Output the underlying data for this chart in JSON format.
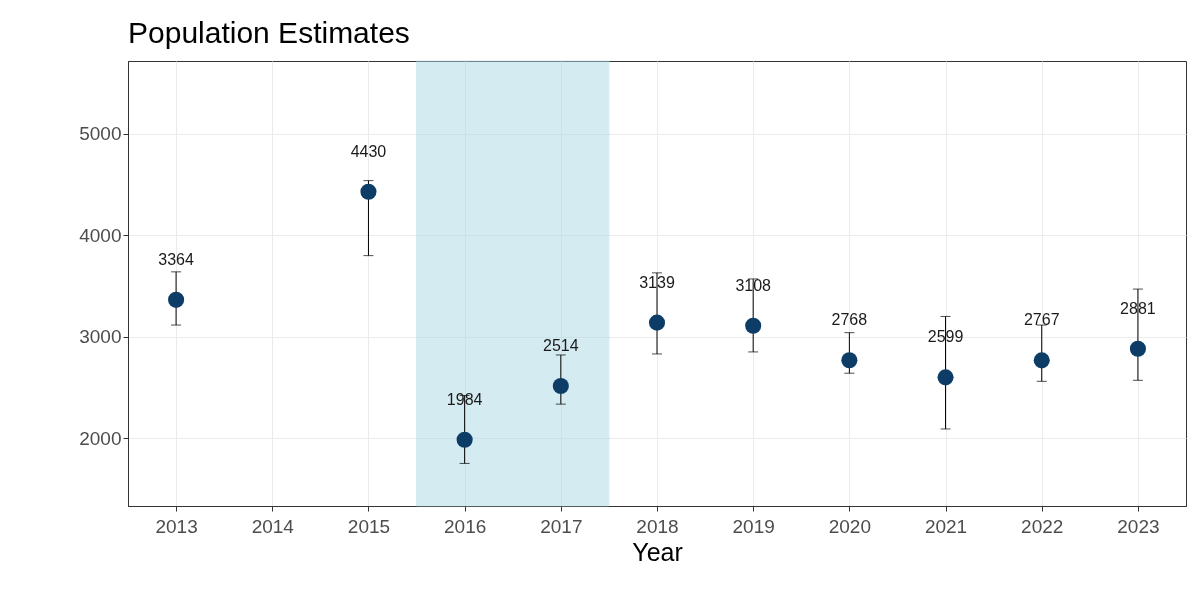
{
  "chart_data": {
    "type": "scatter",
    "title": "Population Estimates",
    "xlabel": "Year",
    "x": [
      2013,
      2015,
      2016,
      2017,
      2018,
      2019,
      2020,
      2021,
      2022,
      2023
    ],
    "series": [
      {
        "color": "#0d3d66",
        "values": [
          3364,
          4430,
          1984,
          2514,
          3139,
          3108,
          2768,
          2599,
          2767,
          2881
        ],
        "errors": [
          [
            3115,
            3640
          ],
          [
            3800,
            4540
          ],
          [
            1750,
            2420
          ],
          [
            2335,
            2820
          ],
          [
            2830,
            3630
          ],
          [
            2850,
            3570
          ],
          [
            2640,
            3040
          ],
          [
            2090,
            3200
          ],
          [
            2560,
            3115
          ],
          [
            2570,
            3470
          ]
        ]
      }
    ],
    "data_labels": true,
    "xlim": [
      2012.5,
      2023.5
    ],
    "xticks": [
      2013,
      2014,
      2015,
      2016,
      2017,
      2018,
      2019,
      2020,
      2021,
      2022,
      2023
    ],
    "ylim": [
      1330,
      5720
    ],
    "yticks": [
      2000,
      3000,
      4000,
      5000
    ],
    "bands": [
      {
        "axis": "x",
        "from": 2015.5,
        "to": 2017.5,
        "color": "#add8e6"
      }
    ],
    "grid": true,
    "marker": "circle"
  }
}
